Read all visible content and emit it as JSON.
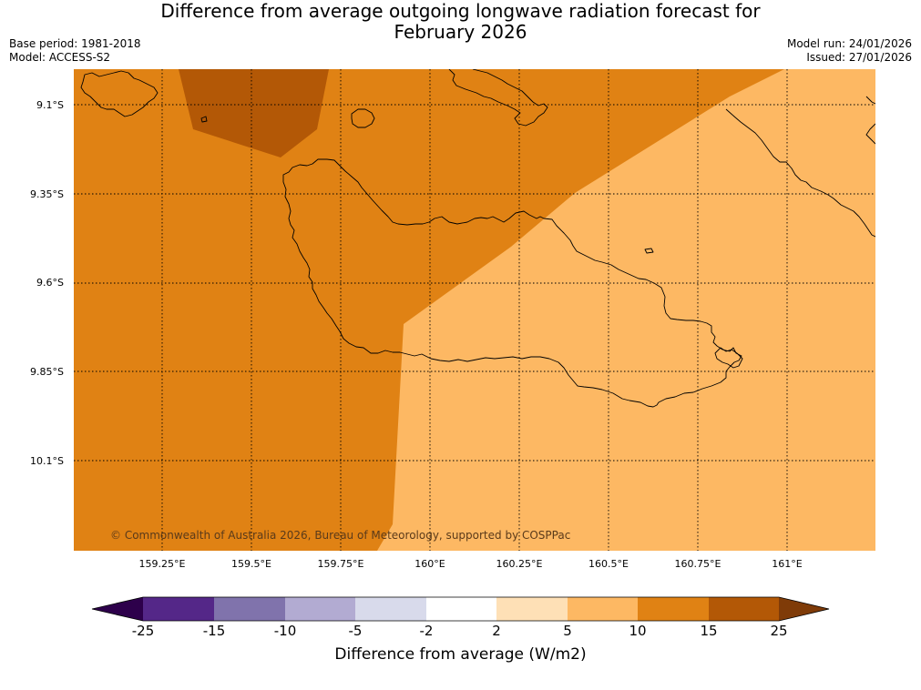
{
  "header": {
    "title_line1": "Difference from average outgoing longwave radiation forecast for",
    "title_line2": "February 2026",
    "base_period": "Base period: 1981-2018",
    "model": "Model: ACCESS-S2",
    "model_run": "Model run: 24/01/2026",
    "issued": "Issued: 27/01/2026"
  },
  "map": {
    "lat_labels": [
      "9.1°S",
      "9.35°S",
      "9.6°S",
      "9.85°S",
      "10.1°S"
    ],
    "lon_labels": [
      "159.25°E",
      "159.5°E",
      "159.75°E",
      "160°E",
      "160.25°E",
      "160.5°E",
      "160.75°E",
      "161°E"
    ],
    "copyright": "© Commonwealth of Australia 2026, Bureau of Meteorology, supported by COSPPac",
    "fill_colors": {
      "band_10_15": "#e08214",
      "band_15_25": "#b35806",
      "band_5_10": "#fdb863"
    }
  },
  "colorbar": {
    "labels": [
      "-25",
      "-15",
      "-10",
      "-5",
      "-2",
      "2",
      "5",
      "10",
      "15",
      "25"
    ],
    "colors": [
      "#2d004b",
      "#542788",
      "#8073ac",
      "#b2abd2",
      "#d8daeb",
      "#ffffff",
      "#fee0b6",
      "#fdb863",
      "#e08214",
      "#b35806",
      "#7f3b08"
    ],
    "title": "Difference from average (W/m2)"
  }
}
